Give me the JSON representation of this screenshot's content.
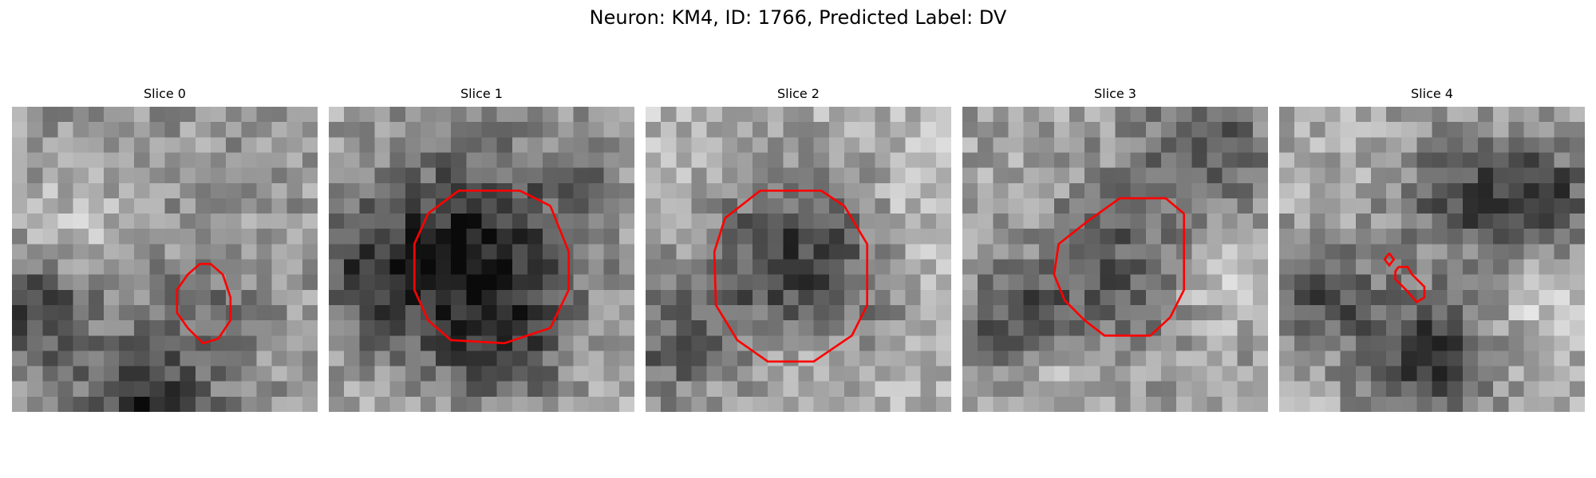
{
  "figure": {
    "suptitle": "Neuron: KM4, ID: 1766, Predicted Label: DV",
    "contour_color": "#ff0000",
    "colormap": "grayscale"
  },
  "panels": [
    {
      "title": "Slice 0",
      "description": "grayscale noisy patch with a small medium-gray blob in center, dark band along bottom-left and bottom edge",
      "contours": [
        [
          [
            13.8,
            11
          ],
          [
            13,
            10.3
          ],
          [
            12.3,
            10.3
          ],
          [
            11.5,
            11
          ],
          [
            10.8,
            12
          ],
          [
            10.8,
            13.5
          ],
          [
            11.5,
            14.5
          ],
          [
            12.5,
            15.5
          ],
          [
            13.5,
            15.2
          ],
          [
            14.3,
            14
          ],
          [
            14.3,
            12.5
          ],
          [
            13.8,
            11
          ]
        ]
      ]
    },
    {
      "title": "Slice 1",
      "description": "large very dark blob in center-left, brighter surroundings at edges",
      "contours": [
        [
          [
            14.5,
            6.5
          ],
          [
            12.5,
            5.5
          ],
          [
            8.5,
            5.5
          ],
          [
            6.5,
            7
          ],
          [
            5.6,
            9
          ],
          [
            5.6,
            12
          ],
          [
            6.5,
            14
          ],
          [
            8,
            15.3
          ],
          [
            11.5,
            15.5
          ],
          [
            14.5,
            14.5
          ],
          [
            15.7,
            12
          ],
          [
            15.7,
            9.5
          ],
          [
            14.5,
            6.5
          ]
        ]
      ]
    },
    {
      "title": "Slice 2",
      "description": "large dark round blob centered, bright ring below it",
      "contours": [
        [
          [
            13,
            6.5
          ],
          [
            11.5,
            5.5
          ],
          [
            7.5,
            5.5
          ],
          [
            5.2,
            7.3
          ],
          [
            4.5,
            9.5
          ],
          [
            4.6,
            13
          ],
          [
            6,
            15.3
          ],
          [
            8,
            16.7
          ],
          [
            11,
            16.7
          ],
          [
            13.5,
            15
          ],
          [
            14.5,
            13
          ],
          [
            14.5,
            9
          ],
          [
            13,
            6.5
          ]
        ]
      ]
    },
    {
      "title": "Slice 3",
      "description": "medium dark octagonal blob center, bright patch at lower-left and right",
      "contours": [
        [
          [
            14.5,
            7
          ],
          [
            13.3,
            6
          ],
          [
            10.3,
            6
          ],
          [
            8.2,
            7.5
          ],
          [
            6.3,
            9
          ],
          [
            6,
            11
          ],
          [
            6.7,
            12.7
          ],
          [
            8,
            14
          ],
          [
            9.3,
            15
          ],
          [
            12.3,
            15
          ],
          [
            13.6,
            13.8
          ],
          [
            14.5,
            12
          ],
          [
            14.5,
            7
          ]
        ]
      ]
    },
    {
      "title": "Slice 4",
      "description": "noisy patch with dark regions at top-right and bottom center, two tiny contours near center",
      "contours": [
        [
          [
            7.2,
            9.6
          ],
          [
            7.5,
            10
          ],
          [
            7.2,
            10.4
          ],
          [
            6.9,
            10
          ],
          [
            7.2,
            9.6
          ]
        ],
        [
          [
            7.8,
            10.5
          ],
          [
            8.4,
            10.5
          ],
          [
            8.7,
            11
          ],
          [
            9.5,
            11.8
          ],
          [
            9.5,
            12.5
          ],
          [
            9,
            12.8
          ],
          [
            8.3,
            12
          ],
          [
            7.6,
            11.3
          ],
          [
            7.6,
            10.8
          ],
          [
            7.8,
            10.5
          ]
        ]
      ]
    }
  ]
}
